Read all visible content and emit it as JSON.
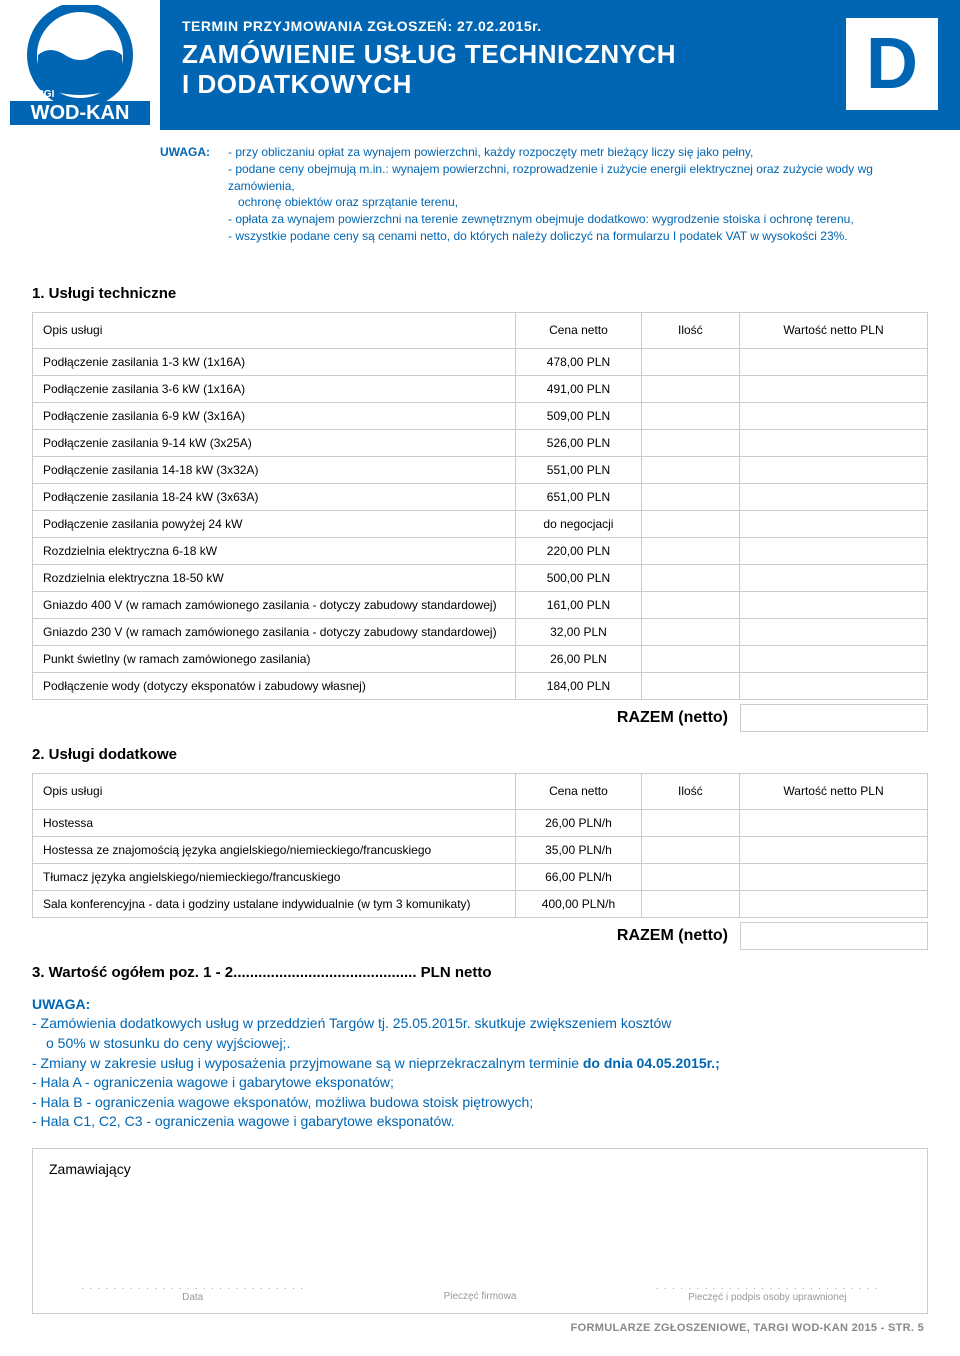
{
  "header": {
    "termin": "TERMIN PRZYJMOWANIA ZGŁOSZEŃ: 27.02.2015r.",
    "title1": "ZAMÓWIENIE USŁUG TECHNICZNYCH",
    "title2": "I DODATKOWYCH",
    "letter": "D",
    "logo_text_top": "TARGI",
    "logo_text_bottom": "WOD-KAN"
  },
  "uwaga_top": {
    "label": "UWAGA:",
    "lines": [
      "- przy obliczaniu opłat za wynajem powierzchni, każdy rozpoczęty metr bieżący liczy się jako pełny,",
      "- podane ceny obejmują m.in.: wynajem powierzchni, rozprowadzenie i zużycie energii elektrycznej oraz zużycie wody wg zamówienia,",
      "  ochronę obiektów oraz sprzątanie terenu,",
      "- opłata za wynajem powierzchni na terenie zewnętrznym obejmuje dodatkowo: wygrodzenie stoiska i ochronę terenu,",
      "- wszystkie podane ceny są cenami netto, do których należy doliczyć na formularzu I podatek VAT w wysokości 23%."
    ]
  },
  "table1": {
    "title": "1. Usługi techniczne",
    "headers": {
      "desc": "Opis usługi",
      "price": "Cena netto",
      "qty": "Ilość",
      "val": "Wartość netto PLN"
    },
    "rows": [
      {
        "desc": "Podłączenie zasilania 1-3 kW (1x16A)",
        "price": "478,00 PLN"
      },
      {
        "desc": "Podłączenie zasilania 3-6 kW (1x16A)",
        "price": "491,00 PLN"
      },
      {
        "desc": "Podłączenie zasilania 6-9 kW (3x16A)",
        "price": "509,00 PLN"
      },
      {
        "desc": "Podłączenie zasilania 9-14 kW (3x25A)",
        "price": "526,00 PLN"
      },
      {
        "desc": "Podłączenie zasilania 14-18 kW (3x32A)",
        "price": "551,00 PLN"
      },
      {
        "desc": "Podłączenie zasilania 18-24 kW (3x63A)",
        "price": "651,00 PLN"
      },
      {
        "desc": "Podłączenie zasilania powyżej 24 kW",
        "price": "do negocjacji"
      },
      {
        "desc": "Rozdzielnia elektryczna 6-18 kW",
        "price": "220,00 PLN"
      },
      {
        "desc": "Rozdzielnia elektryczna 18-50 kW",
        "price": "500,00 PLN"
      },
      {
        "desc": "Gniazdo 400 V (w ramach zamówionego zasilania - dotyczy zabudowy standardowej)",
        "price": "161,00 PLN"
      },
      {
        "desc": "Gniazdo 230 V (w ramach zamówionego zasilania - dotyczy zabudowy standardowej)",
        "price": "32,00 PLN"
      },
      {
        "desc": "Punkt świetlny  (w ramach zamówionego zasilania)",
        "price": "26,00 PLN"
      },
      {
        "desc": "Podłączenie wody (dotyczy eksponatów i zabudowy własnej)",
        "price": "184,00 PLN"
      }
    ],
    "razem": "RAZEM (netto)"
  },
  "table2": {
    "title": "2. Usługi dodatkowe",
    "headers": {
      "desc": "Opis usługi",
      "price": "Cena netto",
      "qty": "Ilość",
      "val": "Wartość netto PLN"
    },
    "rows": [
      {
        "desc": "Hostessa",
        "price": "26,00 PLN/h"
      },
      {
        "desc": "Hostessa ze znajomością języka angielskiego/niemieckiego/francuskiego",
        "price": "35,00 PLN/h"
      },
      {
        "desc": "Tłumacz języka angielskiego/niemieckiego/francuskiego",
        "price": "66,00 PLN/h"
      },
      {
        "desc": "Sala konferencyjna - data i godziny ustalane indywidualnie (w tym 3 komunikaty)",
        "price": "400,00 PLN/h"
      }
    ],
    "razem": "RAZEM (netto)"
  },
  "total_line": "3. Wartość ogółem poz. 1 - 2............................................ PLN netto",
  "uwaga_bottom": {
    "head": "UWAGA:",
    "lines": [
      "- Zamówienia dodatkowych usług w przeddzień Targów tj. 25.05.2015r. skutkuje zwiększeniem kosztów",
      "  o 50% w stosunku do ceny wyjściowej;.",
      "- Zmiany w zakresie usług i wyposażenia przyjmowane są w nieprzekraczalnym terminie <b>do dnia 04.05.2015r.;</b>",
      "- Hala A - ograniczenia wagowe i gabarytowe eksponatów;",
      "- Hala B - ograniczenia wagowe eksponatów, możliwa budowa stoisk piętrowych;",
      "- Hala C1, C2, C3 - ograniczenia wagowe i gabarytowe eksponatów."
    ]
  },
  "signature": {
    "label": "Zamawiający",
    "col1": "Data",
    "col2": "Pieczęć firmowa",
    "col3": "Pieczęć i podpis osoby uprawnionej"
  },
  "footer": "FORMULARZE ZGŁOSZENIOWE, TARGI WOD-KAN 2015 - STR. 5",
  "colors": {
    "blue": "#0066b3",
    "border": "#cccccc",
    "gray": "#999999"
  }
}
